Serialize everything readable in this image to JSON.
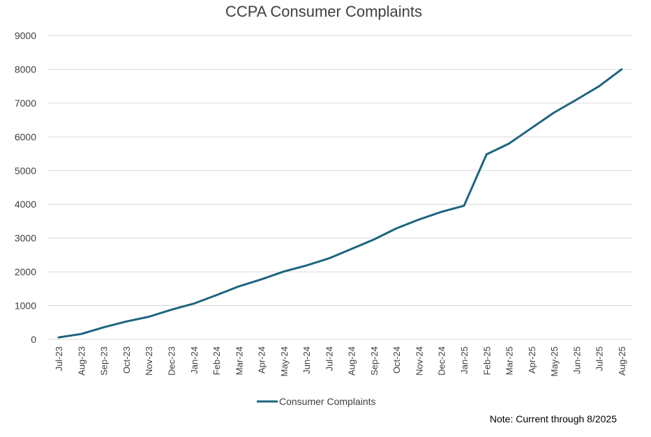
{
  "chart_data": {
    "type": "line",
    "title": "CCPA Consumer Complaints",
    "xlabel": "",
    "ylabel": "",
    "ylim": [
      0,
      9000
    ],
    "yticks": [
      0,
      1000,
      2000,
      3000,
      4000,
      5000,
      6000,
      7000,
      8000,
      9000
    ],
    "grid": true,
    "legend_position": "bottom",
    "categories": [
      "Jul-23",
      "Aug-23",
      "Sep-23",
      "Oct-23",
      "Nov-23",
      "Dec-23",
      "Jan-24",
      "Feb-24",
      "Mar-24",
      "Apr-24",
      "May-24",
      "Jun-24",
      "Jul-24",
      "Aug-24",
      "Sep-24",
      "Oct-24",
      "Nov-24",
      "Dec-24",
      "Jan-25",
      "Feb-25",
      "Mar-25",
      "Apr-25",
      "May-25",
      "Jun-25",
      "Jul-25",
      "Aug-25"
    ],
    "series": [
      {
        "name": "Consumer Complaints",
        "color": "#1d6480",
        "values": [
          60,
          160,
          360,
          530,
          670,
          880,
          1060,
          1310,
          1570,
          1780,
          2010,
          2190,
          2400,
          2680,
          2960,
          3290,
          3550,
          3780,
          3960,
          5480,
          5800,
          6260,
          6720,
          7100,
          7500,
          8000
        ]
      }
    ],
    "note": "Note: Current through 8/2025"
  }
}
